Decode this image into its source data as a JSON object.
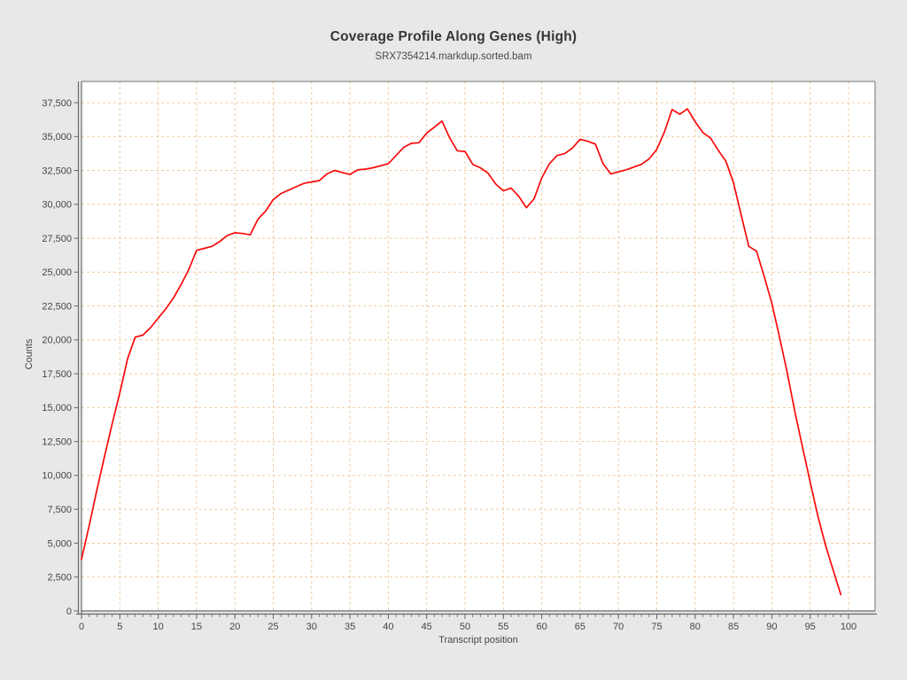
{
  "title": "Coverage Profile Along Genes (High)",
  "subtitle": "SRX7354214.markdup.sorted.bam",
  "chart_data": {
    "type": "line",
    "title": "Coverage Profile Along Genes (High)",
    "subtitle": "SRX7354214.markdup.sorted.bam",
    "xlabel": "Transcript position",
    "ylabel": "Counts",
    "xlim": [
      0,
      103
    ],
    "ylim": [
      0,
      39100
    ],
    "x_ticks": [
      0,
      5,
      10,
      15,
      20,
      25,
      30,
      35,
      40,
      45,
      50,
      55,
      60,
      65,
      70,
      75,
      80,
      85,
      90,
      95,
      100
    ],
    "y_ticks": [
      0,
      2500,
      5000,
      7500,
      10000,
      12500,
      15000,
      17500,
      20000,
      22500,
      25000,
      27500,
      30000,
      32500,
      35000,
      37500
    ],
    "grid": "dashed",
    "grid_color": "#f0cba2",
    "plot_background": "#ffffff",
    "outer_background": "#e8e8e8",
    "axis_color": "#676767",
    "frame_color": "#8a8a8a",
    "series": [
      {
        "name": "SRX7354214.markdup.sorted.bam",
        "color": "#fb0a0a",
        "x": [
          0,
          1,
          2,
          3,
          4,
          5,
          6,
          7,
          8,
          9,
          10,
          11,
          12,
          13,
          14,
          15,
          16,
          17,
          18,
          19,
          20,
          21,
          22,
          23,
          24,
          25,
          26,
          27,
          28,
          29,
          30,
          31,
          32,
          33,
          34,
          35,
          36,
          37,
          38,
          39,
          40,
          41,
          42,
          43,
          44,
          45,
          46,
          47,
          48,
          49,
          50,
          51,
          52,
          53,
          54,
          55,
          56,
          57,
          58,
          59,
          60,
          61,
          62,
          63,
          64,
          65,
          66,
          67,
          68,
          69,
          70,
          71,
          72,
          73,
          74,
          75,
          76,
          77,
          78,
          79,
          80,
          81,
          82,
          83,
          84,
          85,
          86,
          87,
          88,
          89,
          90,
          91,
          92,
          93,
          94,
          95,
          96,
          97,
          98,
          99
        ],
        "values": [
          3800,
          6300,
          8900,
          11400,
          13800,
          16100,
          18600,
          20200,
          20350,
          20900,
          21600,
          22300,
          23100,
          24100,
          25200,
          26600,
          26750,
          26900,
          27250,
          27700,
          27900,
          27850,
          27750,
          28900,
          29500,
          30350,
          30800,
          31050,
          31300,
          31550,
          31650,
          31750,
          32250,
          32500,
          32350,
          32200,
          32550,
          32600,
          32700,
          32850,
          33000,
          33600,
          34200,
          34500,
          34550,
          35250,
          35700,
          36150,
          34900,
          33950,
          33900,
          32950,
          32700,
          32300,
          31500,
          31000,
          31200,
          30600,
          29750,
          30400,
          31950,
          33000,
          33600,
          33750,
          34150,
          34800,
          34650,
          34450,
          33000,
          32250,
          32400,
          32550,
          32750,
          32950,
          33350,
          34050,
          35350,
          37000,
          36650,
          37050,
          36100,
          35300,
          34900,
          34000,
          33200,
          31600,
          29200,
          26900,
          26550,
          24700,
          22700,
          20200,
          17600,
          14700,
          12100,
          9500,
          7000,
          4850,
          3000,
          1200
        ]
      }
    ]
  }
}
